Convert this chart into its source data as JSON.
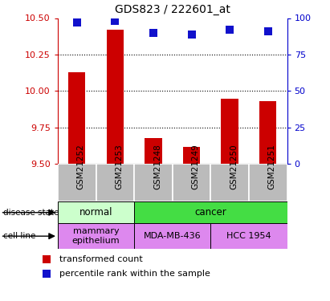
{
  "title": "GDS823 / 222601_at",
  "samples": [
    "GSM21252",
    "GSM21253",
    "GSM21248",
    "GSM21249",
    "GSM21250",
    "GSM21251"
  ],
  "bar_values": [
    10.13,
    10.42,
    9.68,
    9.62,
    9.95,
    9.93
  ],
  "percentile_values": [
    97,
    98,
    90,
    89,
    92,
    91
  ],
  "bar_color": "#cc0000",
  "dot_color": "#1111cc",
  "ylim_left": [
    9.5,
    10.5
  ],
  "ylim_right": [
    0,
    100
  ],
  "yticks_left": [
    9.5,
    9.75,
    10.0,
    10.25,
    10.5
  ],
  "yticks_right": [
    0,
    25,
    50,
    75,
    100
  ],
  "grid_values": [
    9.75,
    10.0,
    10.25
  ],
  "disease_state_groups": [
    {
      "label": "normal",
      "start": 0,
      "end": 2,
      "color": "#ccffcc"
    },
    {
      "label": "cancer",
      "start": 2,
      "end": 6,
      "color": "#44cc44"
    }
  ],
  "cell_line_groups": [
    {
      "label": "mammary\nepithelium",
      "start": 0,
      "end": 2
    },
    {
      "label": "MDA-MB-436",
      "start": 2,
      "end": 4
    },
    {
      "label": "HCC 1954",
      "start": 4,
      "end": 6
    }
  ],
  "left_axis_color": "#cc0000",
  "right_axis_color": "#0000cc",
  "bar_width": 0.45,
  "dot_size": 55,
  "sample_bg_color": "#bbbbbb",
  "disease_row_color_normal": "#ccffcc",
  "disease_row_color_cancer": "#44dd44",
  "cell_row_color": "#dd88ee",
  "legend_red_color": "#cc0000",
  "legend_blue_color": "#1111cc"
}
